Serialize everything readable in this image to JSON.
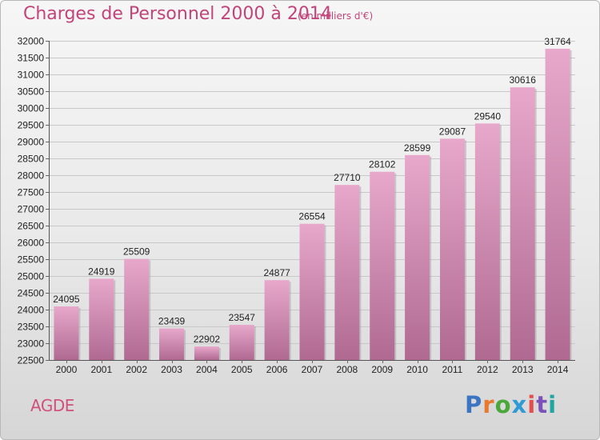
{
  "title": "Charges de Personnel 2000 à 2014",
  "subtitle": "(en milliers d'€)",
  "commune": "AGDE",
  "logo": {
    "text": "Proxiti",
    "colors": [
      "#3a74c2",
      "#e8792e",
      "#4aa83a",
      "#2f9ad4",
      "#e34f4f",
      "#7a52b8",
      "#1fa6a0"
    ]
  },
  "colors": {
    "bar_top": "#e7a8cb",
    "bar_bottom": "#b06a92",
    "title": "#c2447a"
  },
  "chart_data": {
    "type": "bar",
    "title": "Charges de Personnel 2000 à 2014",
    "xlabel": "",
    "ylabel": "",
    "categories": [
      "2000",
      "2001",
      "2002",
      "2003",
      "2004",
      "2005",
      "2006",
      "2007",
      "2008",
      "2009",
      "2010",
      "2011",
      "2012",
      "2013",
      "2014"
    ],
    "values": [
      24095,
      24919,
      25509,
      23439,
      22902,
      23547,
      24877,
      26554,
      27710,
      28102,
      28599,
      29087,
      29540,
      30616,
      31764
    ],
    "ylim": [
      22500,
      32000
    ],
    "ytick_step": 500,
    "grid": true,
    "legend": "none"
  }
}
